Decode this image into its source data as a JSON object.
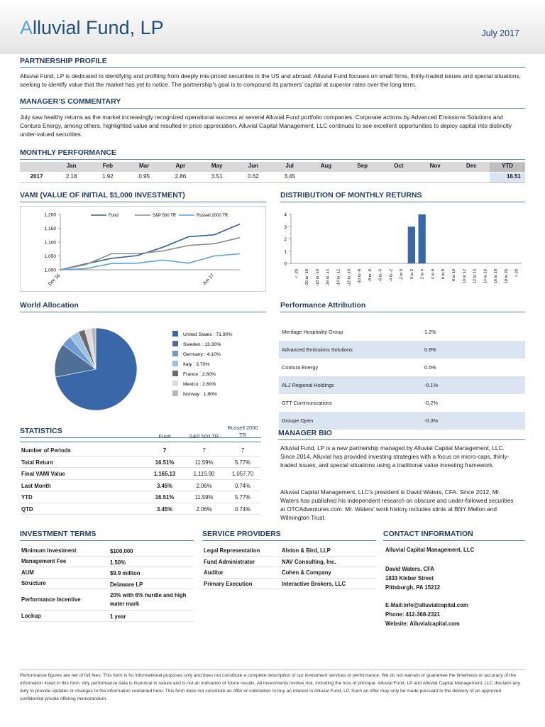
{
  "header": {
    "title": "Alluvial Fund, LP",
    "date": "July 2017"
  },
  "partnership_profile": {
    "heading": "PARTNERSHIP PROFILE",
    "text": "Alluvial Fund, LP is dedicated to identifying and profiting from deeply mis-priced securities in the US and abroad. Alluvial Fund focuses on small firms, thinly-traded issues and special situations, seeking to identify value that the market has yet to notice. The partnership's goal is to compound its partners' capital at superior rates over the long term."
  },
  "managers_commentary": {
    "heading": "MANAGER’S COMMENTARY",
    "text": "July saw healthy returns as the market increasingly recognized operational success at several Alluvial Fund portfolio companies. Corporate actions by Advanced Emissions Solutions and Contura Energy, among others, highlighted value and resulted in price appreciation. Alluvial Capital Management, LLC continues to see excellent opportunities to deploy capital into distinctly under-valued securities."
  },
  "monthly_performance": {
    "heading": "MONTHLY PERFORMANCE",
    "columns": [
      "Jan",
      "Feb",
      "Mar",
      "Apr",
      "May",
      "Jun",
      "Jul",
      "Aug",
      "Sep",
      "Oct",
      "Nov",
      "Dec",
      "YTD"
    ],
    "rows": [
      {
        "label": "2017",
        "values": [
          "2.18",
          "1.92",
          "0.95",
          "2.86",
          "3.51",
          "0.62",
          "3.45"
        ],
        "ytd": "16.51"
      }
    ]
  },
  "chart_data": [
    {
      "type": "line",
      "title": "VAMI (VALUE OF INITIAL $1,000 INVESTMENT)",
      "categories": [
        "Dec 16",
        null,
        null,
        null,
        null,
        null,
        "Jun 17",
        null
      ],
      "series": [
        {
          "name": "Fund",
          "color": "#2e5f99",
          "values": [
            1000,
            1021.8,
            1041.4,
            1051.3,
            1081.4,
            1119.3,
            1126.3,
            1165.13
          ]
        },
        {
          "name": "S&P 500 TR",
          "color": "#8c8c8c",
          "values": [
            1000,
            1019,
            1058,
            1058,
            1068,
            1088,
            1094,
            1115.9
          ]
        },
        {
          "name": "Russell 2000 TR",
          "color": "#5ba3d9",
          "values": [
            1000,
            1004,
            1023,
            1024,
            1035,
            1024,
            1050,
            1057.7
          ]
        }
      ],
      "ylim": [
        1000,
        1200
      ],
      "yticks": [
        {
          "value": 1000,
          "label": "1,000"
        },
        {
          "value": 1050,
          "label": "1,050"
        },
        {
          "value": 1100,
          "label": "1,100"
        },
        {
          "value": 1150,
          "label": "1,150"
        },
        {
          "value": 1200,
          "label": "1,200"
        }
      ],
      "legend": "top"
    },
    {
      "type": "bar",
      "title": "DISTRIBUTION OF MONTHLY RETURNS",
      "categories": [
        "< -20",
        "-20 to -18",
        "-18 to -16",
        "-16 to -14",
        "-14 to -12",
        "-12 to -10",
        "-10 to -8",
        "-8 to -6",
        "-6 to -4",
        "-4 to -2",
        "-2 to 0",
        "0 to 2",
        "2 to 4",
        "4 to 6",
        "6 to 8",
        "8 to 10",
        "10 to 12",
        "12 to 14",
        "14 to 16",
        "16 to 18",
        "18 to 20",
        "> 20"
      ],
      "values": [
        0,
        0,
        0,
        0,
        0,
        0,
        0,
        0,
        0,
        0,
        0,
        3,
        4,
        0,
        0,
        0,
        0,
        0,
        0,
        0,
        0,
        0
      ],
      "color": "#3a67a8",
      "ylim": [
        0,
        4
      ],
      "yticks": [
        0,
        1,
        2,
        3,
        4
      ]
    },
    {
      "type": "pie",
      "title": "World Allocation",
      "categories": [
        "United States : 71.90%",
        "Sweden : 13.30%",
        "Germany : 4.10%",
        "Italy : 3.70%",
        "France : 2.60%",
        "Mexico : 2.60%",
        "Norway : 1.80%"
      ],
      "values": [
        71.9,
        13.3,
        4.1,
        3.7,
        2.6,
        2.6,
        1.8
      ],
      "colors": [
        "#3a67a8",
        "#4f6f98",
        "#6f9bd0",
        "#9cc0e6",
        "#6b6b6b",
        "#dcdcdc",
        "#b8b8b8"
      ]
    }
  ],
  "performance_attribution": {
    "heading": "Performance Attribution",
    "rows": [
      [
        "Meritage Hospitality Group",
        "1.2%"
      ],
      [
        "Advanced Emissions Solutions",
        "0.8%"
      ],
      [
        "Contura Energy",
        "0.5%"
      ],
      [
        "ALJ Regional Holdings",
        "-0.1%"
      ],
      [
        "GTT Communications",
        "-0.2%"
      ],
      [
        "Groupe Open",
        "-0.3%"
      ]
    ]
  },
  "statistics": {
    "heading": "STATISTICS",
    "columns": [
      "Fund",
      "S&P 500 TR",
      "Russell 2000 TR"
    ],
    "rows": [
      [
        "Number of Periods",
        "7",
        "7",
        "7"
      ],
      [
        "Total Return",
        "16.51%",
        "11.59%",
        "5.77%"
      ],
      [
        "Final VAMI Value",
        "1,165.13",
        "1,115.90",
        "1,057.70"
      ],
      [
        "Last Month",
        "3.45%",
        "2.06%",
        "0.74%"
      ],
      [
        "YTD",
        "16.51%",
        "11.59%",
        "5.77%"
      ],
      [
        "QTD",
        "3.45%",
        "2.06%",
        "0.74%"
      ]
    ]
  },
  "manager_bio": {
    "heading": "MANAGER BIO",
    "paragraphs": [
      "Alluvial Fund, LP is a new partnership managed by Alluvial Capital Management, LLC. Since 2014, Alluvial has provided investing strategies with a focus on micro-caps, thinly-traded issues, and special situations using a traditional value investing framework.",
      "Alluvial Capital Management, LLC's president is David Waters, CFA. Since 2012, Mr. Waters has published his independent research on obscure and under-followed securities at OTCAdventures.com. Mr. Waters' work history includes stints at BNY Mellon and Wilmington Trust."
    ]
  },
  "investment_terms": {
    "heading": "INVESTMENT TERMS",
    "rows": [
      [
        "Minimum Investment",
        "$100,000"
      ],
      [
        "Management Fee",
        "1.50%"
      ],
      [
        "AUM",
        "$9.9 million"
      ],
      [
        "Structure",
        "Delaware LP"
      ],
      [
        "Performance Incentive",
        "20% with 6% hurdle and high water mark"
      ],
      [
        "Lockup",
        "1 year"
      ]
    ]
  },
  "service_providers": {
    "heading": "SERVICE PROVIDERS",
    "rows": [
      [
        "Legal Representation",
        "Alston & Bird, LLP"
      ],
      [
        "Fund Administrator",
        "NAV Consulting, Inc."
      ],
      [
        "Auditor",
        "Cohen & Company"
      ],
      [
        "Primary Execution",
        "Interactive Brokers, LLC"
      ]
    ]
  },
  "contact_information": {
    "heading": "CONTACT INFORMATION",
    "groups": [
      [
        "Alluvial Capital Management, LLC"
      ],
      [
        "David Waters, CFA",
        "1833 Kleber Street",
        "Pittsburgh, PA 15212"
      ],
      [
        "E-Mail:info@alluvialcapital.com",
        "Phone: 412-368-2321",
        "Website: Alluvialcapital.com"
      ]
    ]
  },
  "footer": {
    "text": "Performance figures are net of full fees. This form is for informational purposes only and does not constitute a complete description of our investment services or performance. We do not warrant or guarantee the timeliness or accuracy of the information listed in this form. Any performance data is historical in nature and is not an indication of future results. All investments involve risk, including the loss of principal. Alluvial Fund, LP and Alluvial Capital Management, LLC disclaim any duty to provide updates or changes to the information contained here. This form does not constitute an offer or solicitation to buy an interest in Alluvial Fund, LP. Such an offer may only be made pursuant to the delivery of an approved confidential private offering memorandum."
  }
}
